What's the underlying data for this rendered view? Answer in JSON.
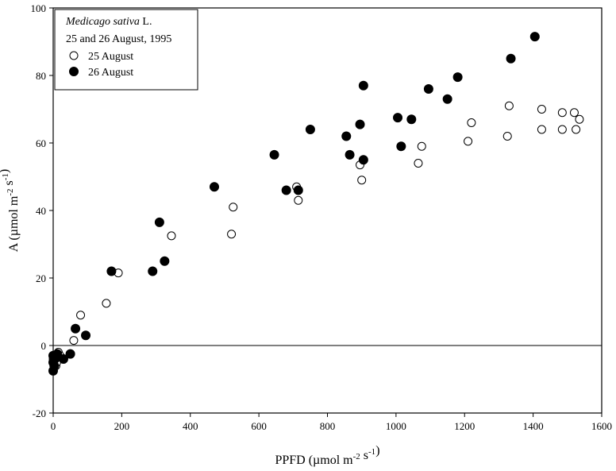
{
  "chart_data": {
    "type": "scatter",
    "title": "",
    "xlabel": "PPFD (µmol m⁻² s⁻¹)",
    "ylabel": "A (µmol m⁻² s⁻¹)",
    "xlim": [
      0,
      1600
    ],
    "ylim": [
      -20,
      100
    ],
    "xticks": [
      0,
      200,
      400,
      600,
      800,
      1000,
      1200,
      1400,
      1600
    ],
    "yticks": [
      -20,
      0,
      20,
      40,
      60,
      80,
      100
    ],
    "reference_line_y": 0,
    "grid": false,
    "legend": {
      "placement": "top-left",
      "title_italic": "Medicago sativa",
      "title_suffix": " L.",
      "subtitle": "25 and 26 August, 1995"
    },
    "series": [
      {
        "name": "25 August",
        "marker": "open-circle",
        "points": [
          [
            0,
            -4
          ],
          [
            2,
            -5
          ],
          [
            5,
            -3
          ],
          [
            8,
            -6
          ],
          [
            10,
            -5
          ],
          [
            15,
            -2
          ],
          [
            20,
            -3
          ],
          [
            60,
            1.5
          ],
          [
            80,
            9
          ],
          [
            155,
            12.5
          ],
          [
            190,
            21.5
          ],
          [
            345,
            32.5
          ],
          [
            520,
            33
          ],
          [
            525,
            41
          ],
          [
            710,
            47
          ],
          [
            715,
            43
          ],
          [
            895,
            53.5
          ],
          [
            900,
            49
          ],
          [
            1065,
            54
          ],
          [
            1075,
            59
          ],
          [
            1210,
            60.5
          ],
          [
            1220,
            66
          ],
          [
            1325,
            62
          ],
          [
            1330,
            71
          ],
          [
            1425,
            70
          ],
          [
            1425,
            64
          ],
          [
            1485,
            69
          ],
          [
            1485,
            64
          ],
          [
            1520,
            69
          ],
          [
            1525,
            64
          ],
          [
            1535,
            67
          ]
        ]
      },
      {
        "name": "26 August",
        "marker": "filled-circle",
        "points": [
          [
            0,
            -3
          ],
          [
            0,
            -5
          ],
          [
            0,
            -7.5
          ],
          [
            3,
            -6
          ],
          [
            5,
            -4
          ],
          [
            8,
            -3
          ],
          [
            12,
            -2.5
          ],
          [
            30,
            -4
          ],
          [
            50,
            -2.5
          ],
          [
            65,
            5
          ],
          [
            95,
            3
          ],
          [
            170,
            22
          ],
          [
            290,
            22
          ],
          [
            310,
            36.5
          ],
          [
            325,
            25
          ],
          [
            470,
            47
          ],
          [
            645,
            56.5
          ],
          [
            680,
            46
          ],
          [
            715,
            46
          ],
          [
            750,
            64
          ],
          [
            855,
            62
          ],
          [
            865,
            56.5
          ],
          [
            895,
            65.5
          ],
          [
            905,
            55
          ],
          [
            905,
            77
          ],
          [
            1005,
            67.5
          ],
          [
            1015,
            59
          ],
          [
            1045,
            67
          ],
          [
            1095,
            76
          ],
          [
            1150,
            73
          ],
          [
            1180,
            79.5
          ],
          [
            1335,
            85
          ],
          [
            1405,
            91.5
          ]
        ]
      }
    ]
  }
}
